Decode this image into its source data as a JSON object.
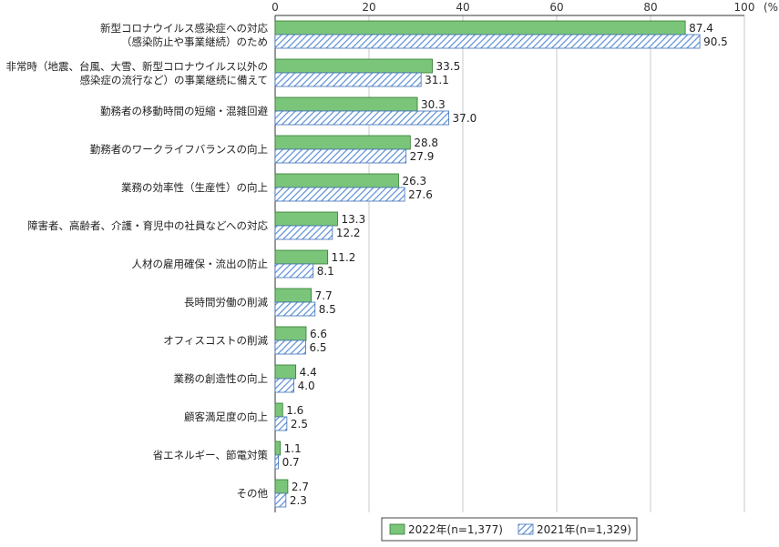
{
  "chart_data": {
    "type": "bar",
    "orientation": "horizontal",
    "unit": "(%)",
    "xlim": [
      0,
      100
    ],
    "xticks": [
      0,
      20,
      40,
      60,
      80,
      100
    ],
    "grid": true,
    "legend_position": "bottom-right",
    "categories": [
      [
        "新型コロナウイルス感染症への対応",
        "（感染防止や事業継続）のため"
      ],
      [
        "非常時（地震、台風、大雪、新型コロナウイルス以外の",
        "感染症の流行など）の事業継続に備えて"
      ],
      [
        "勤務者の移動時間の短縮・混雑回避"
      ],
      [
        "勤務者のワークライフバランスの向上"
      ],
      [
        "業務の効率性（生産性）の向上"
      ],
      [
        "障害者、高齢者、介護・育児中の社員などへの対応"
      ],
      [
        "人材の雇用確保・流出の防止"
      ],
      [
        "長時間労働の削減"
      ],
      [
        "オフィスコストの削減"
      ],
      [
        "業務の創造性の向上"
      ],
      [
        "顧客満足度の向上"
      ],
      [
        "省エネルギー、節電対策"
      ],
      [
        "その他"
      ]
    ],
    "series": [
      {
        "name": "2022年(n=1,377)",
        "color": "#7bc57b",
        "values": [
          87.4,
          33.5,
          30.3,
          28.8,
          26.3,
          13.3,
          11.2,
          7.7,
          6.6,
          4.4,
          1.6,
          1.1,
          2.7
        ],
        "labels": [
          "87.4",
          "33.5",
          "30.3",
          "28.8",
          "26.3",
          "13.3",
          "11.2",
          "7.7",
          "6.6",
          "4.4",
          "1.6",
          "1.1",
          "2.7"
        ]
      },
      {
        "name": "2021年(n=1,329)",
        "color": "#5b8fd6",
        "pattern": "diagonal-hatch",
        "values": [
          90.5,
          31.1,
          37.0,
          27.9,
          27.6,
          12.2,
          8.1,
          8.5,
          6.5,
          4.0,
          2.5,
          0.7,
          2.3
        ],
        "labels": [
          "90.5",
          "31.1",
          "37.0",
          "27.9",
          "27.6",
          "12.2",
          "8.1",
          "8.5",
          "6.5",
          "4.0",
          "2.5",
          "0.7",
          "2.3"
        ]
      }
    ]
  }
}
